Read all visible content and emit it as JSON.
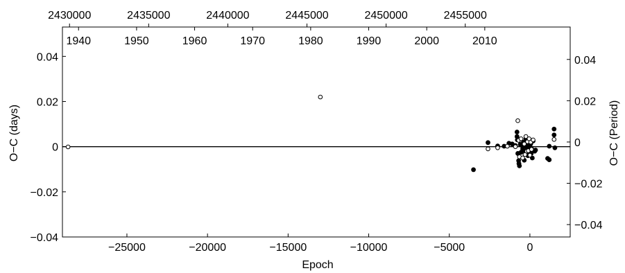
{
  "chart_data": {
    "type": "scatter",
    "title": "",
    "xlabel": "Epoch",
    "ylabel": "O−C (days)",
    "ylabel_right": "O−C (Period)",
    "xlim": [
      -29000,
      2500
    ],
    "ylim": [
      -0.04,
      0.053
    ],
    "ylim_right": [
      -0.046,
      0.0557
    ],
    "grid": false,
    "reference_line_y": 0,
    "x_ticks": [
      {
        "value": -25000,
        "label": "−25000"
      },
      {
        "value": -20000,
        "label": "−20000"
      },
      {
        "value": -15000,
        "label": "−15000"
      },
      {
        "value": -10000,
        "label": "−10000"
      },
      {
        "value": -5000,
        "label": "−5000"
      },
      {
        "value": 0,
        "label": "0"
      }
    ],
    "y_ticks": [
      {
        "value": 0.04,
        "label": "0.04"
      },
      {
        "value": 0.02,
        "label": "0.02"
      },
      {
        "value": 0,
        "label": "0"
      },
      {
        "value": -0.02,
        "label": "−0.02"
      },
      {
        "value": -0.04,
        "label": "−0.04"
      }
    ],
    "y_right_ticks": [
      {
        "value": 0.04,
        "label": "0.04"
      },
      {
        "value": 0.02,
        "label": "0.02"
      },
      {
        "value": 0,
        "label": "0"
      },
      {
        "value": -0.02,
        "label": "−0.02"
      },
      {
        "value": -0.04,
        "label": "−0.04"
      }
    ],
    "top_jd_ticks": [
      {
        "epoch": -28560,
        "label": "2430000"
      },
      {
        "epoch": -23650,
        "label": "2435000"
      },
      {
        "epoch": -18740,
        "label": "2440000"
      },
      {
        "epoch": -13830,
        "label": "2445000"
      },
      {
        "epoch": -8920,
        "label": "2450000"
      },
      {
        "epoch": -4010,
        "label": "2455000"
      }
    ],
    "year_ticks": [
      {
        "epoch": -28000,
        "label": "1940"
      },
      {
        "epoch": -24400,
        "label": "1950"
      },
      {
        "epoch": -20800,
        "label": "1960"
      },
      {
        "epoch": -17200,
        "label": "1970"
      },
      {
        "epoch": -13600,
        "label": "1980"
      },
      {
        "epoch": -10000,
        "label": "1990"
      },
      {
        "epoch": -6400,
        "label": "2000"
      },
      {
        "epoch": -2800,
        "label": "2010"
      }
    ],
    "series": [
      {
        "marker": "filled",
        "values": [
          [
            -3500,
            -0.0102
          ],
          [
            -2600,
            0.0018
          ],
          [
            -2000,
            0.0003
          ],
          [
            -1600,
            0.0002
          ],
          [
            -1300,
            0.0015
          ],
          [
            -1100,
            0.0012
          ],
          [
            -900,
            0.0005
          ],
          [
            -800,
            0.0065
          ],
          [
            -800,
            0.0045
          ],
          [
            -780,
            0.003
          ],
          [
            -750,
            -0.003
          ],
          [
            -700,
            -0.0062
          ],
          [
            -680,
            -0.0075
          ],
          [
            -650,
            -0.0085
          ],
          [
            -600,
            0.001
          ],
          [
            -550,
            -0.0025
          ],
          [
            -500,
            0.0005
          ],
          [
            -450,
            -0.001
          ],
          [
            -400,
            0.002
          ],
          [
            -350,
            -0.006
          ],
          [
            -300,
            -0.002
          ],
          [
            -250,
            0.0035
          ],
          [
            -220,
            0.0
          ],
          [
            -200,
            0.0025
          ],
          [
            -180,
            -0.0015
          ],
          [
            -150,
            0.001
          ],
          [
            -120,
            -0.004
          ],
          [
            -100,
            0.0008
          ],
          [
            -80,
            -0.0025
          ],
          [
            -50,
            0.0015
          ],
          [
            -30,
            -0.001
          ],
          [
            0,
            0.0005
          ],
          [
            20,
            -0.002
          ],
          [
            50,
            0.0012
          ],
          [
            80,
            -0.003
          ],
          [
            100,
            -0.0008
          ],
          [
            150,
            -0.005
          ],
          [
            200,
            0.0025
          ],
          [
            300,
            -0.002
          ],
          [
            350,
            -0.0015
          ],
          [
            1100,
            -0.0052
          ],
          [
            1200,
            -0.0058
          ],
          [
            1200,
            0.0002
          ],
          [
            1500,
            0.0078
          ],
          [
            1500,
            0.0052
          ],
          [
            1550,
            -0.0005
          ]
        ]
      },
      {
        "marker": "open",
        "values": [
          [
            -28650,
            -0.0001
          ],
          [
            -13000,
            0.022
          ],
          [
            -2600,
            -0.001
          ],
          [
            -2000,
            -0.0005
          ],
          [
            -1400,
            0.0002
          ],
          [
            -900,
            0.0
          ],
          [
            -750,
            0.0115
          ],
          [
            -700,
            0.0028
          ],
          [
            -650,
            -0.0045
          ],
          [
            -550,
            0.0035
          ],
          [
            -450,
            -0.005
          ],
          [
            -350,
            0.0012
          ],
          [
            -300,
            -0.0035
          ],
          [
            -250,
            0.0045
          ],
          [
            -200,
            -0.002
          ],
          [
            -150,
            0.0022
          ],
          [
            -100,
            -0.0018
          ],
          [
            -50,
            0.0035
          ],
          [
            0,
            -0.0038
          ],
          [
            50,
            0.002
          ],
          [
            100,
            -0.0012
          ],
          [
            200,
            0.003
          ],
          [
            1500,
            0.0032
          ]
        ]
      }
    ]
  }
}
